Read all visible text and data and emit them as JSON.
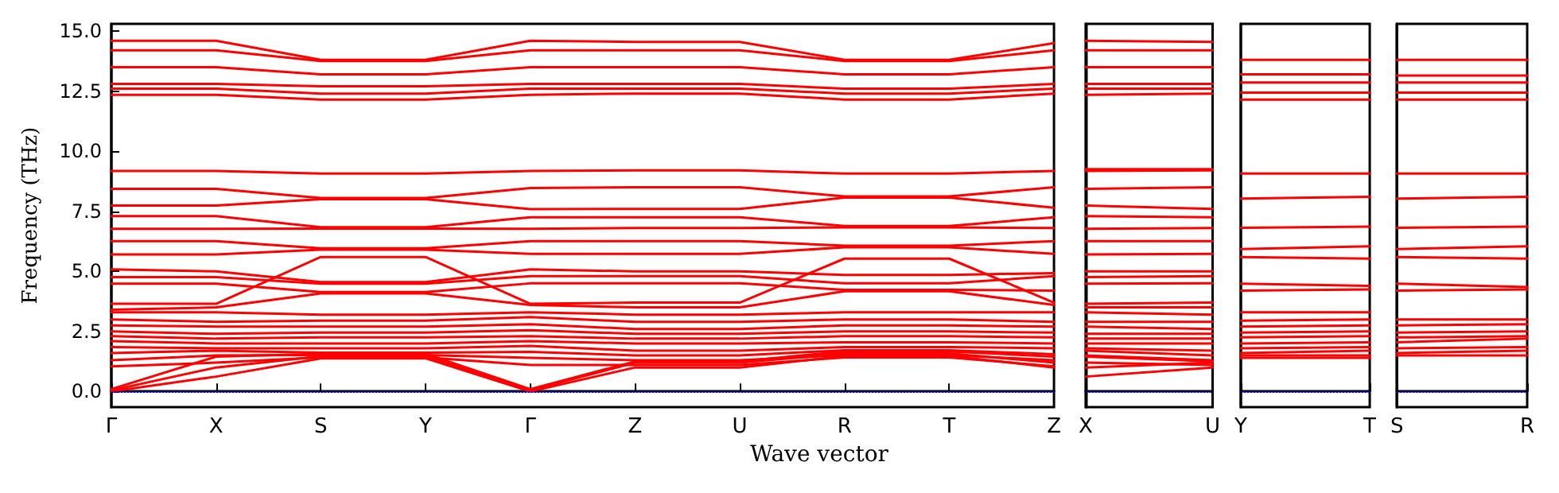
{
  "chart_data": [
    {
      "type": "line",
      "xlabel": "Wave vector",
      "ylabel": "Frequency (THz)",
      "ylim": [
        -0.65,
        15.3
      ],
      "categories": [
        "Γ",
        "X",
        "S",
        "Y",
        "Γ",
        "Z",
        "U",
        "R",
        "T",
        "Z"
      ],
      "yticks": [
        {
          "value": 0,
          "label": "0.0"
        },
        {
          "value": 2.5,
          "label": "2.5"
        },
        {
          "value": 5,
          "label": "5.0"
        },
        {
          "value": 7.5,
          "label": "7.5"
        },
        {
          "value": 10,
          "label": "10.0"
        },
        {
          "value": 12.5,
          "label": "12.5"
        },
        {
          "value": 15,
          "label": "15.0"
        }
      ],
      "grid": false,
      "marker": "none",
      "line_style": "solid",
      "ref_lines": [
        {
          "axis": "y",
          "value": 0,
          "color": "#0000ff",
          "line_style": "dotted"
        }
      ],
      "series": [
        {
          "color": "#ff0000",
          "values": [
            14.6,
            14.6,
            13.8,
            13.8,
            14.6,
            14.55,
            14.55,
            13.8,
            13.8,
            14.5
          ]
        },
        {
          "color": "#ff0000",
          "values": [
            14.2,
            14.2,
            13.75,
            13.75,
            14.2,
            14.2,
            14.2,
            13.75,
            13.75,
            14.2
          ]
        },
        {
          "color": "#ff0000",
          "values": [
            13.5,
            13.5,
            13.2,
            13.2,
            13.5,
            13.5,
            13.5,
            13.2,
            13.2,
            13.5
          ]
        },
        {
          "color": "#ff0000",
          "values": [
            12.8,
            12.8,
            12.7,
            12.7,
            12.8,
            12.8,
            12.8,
            12.6,
            12.6,
            12.8
          ]
        },
        {
          "color": "#ff0000",
          "values": [
            12.6,
            12.6,
            12.4,
            12.4,
            12.6,
            12.6,
            12.6,
            12.4,
            12.4,
            12.6
          ]
        },
        {
          "color": "#ff0000",
          "values": [
            12.35,
            12.35,
            12.15,
            12.15,
            12.35,
            12.4,
            12.4,
            12.15,
            12.15,
            12.4
          ]
        },
        {
          "color": "#ff0000",
          "values": [
            9.18,
            9.18,
            9.07,
            9.07,
            9.18,
            9.2,
            9.2,
            9.07,
            9.07,
            9.18
          ]
        },
        {
          "color": "#ff0000",
          "values": [
            8.43,
            8.43,
            8.05,
            8.05,
            8.47,
            8.5,
            8.5,
            8.12,
            8.12,
            8.5
          ]
        },
        {
          "color": "#ff0000",
          "values": [
            7.74,
            7.74,
            8.0,
            8.0,
            7.59,
            7.6,
            7.6,
            8.07,
            8.07,
            7.65
          ]
        },
        {
          "color": "#ff0000",
          "values": [
            7.3,
            7.3,
            6.84,
            6.84,
            7.25,
            7.25,
            7.25,
            6.89,
            6.89,
            7.25
          ]
        },
        {
          "color": "#ff0000",
          "values": [
            6.77,
            6.77,
            6.78,
            6.78,
            6.77,
            6.8,
            6.8,
            6.83,
            6.83,
            6.8
          ]
        },
        {
          "color": "#ff0000",
          "values": [
            6.26,
            6.26,
            5.96,
            5.96,
            6.26,
            6.26,
            6.26,
            6.07,
            6.07,
            6.26
          ]
        },
        {
          "color": "#ff0000",
          "values": [
            5.7,
            5.7,
            5.9,
            5.9,
            5.73,
            5.73,
            5.73,
            6.0,
            6.0,
            5.73
          ]
        },
        {
          "color": "#ff0000",
          "values": [
            3.65,
            3.65,
            5.6,
            5.6,
            3.65,
            3.7,
            3.7,
            5.53,
            5.53,
            3.7
          ]
        },
        {
          "color": "#ff0000",
          "values": [
            5.08,
            5.0,
            4.55,
            4.55,
            5.08,
            5.0,
            5.0,
            4.85,
            4.85,
            4.93
          ]
        },
        {
          "color": "#ff0000",
          "values": [
            4.76,
            4.76,
            4.49,
            4.49,
            4.8,
            4.8,
            4.8,
            4.5,
            4.5,
            4.8
          ]
        },
        {
          "color": "#ff0000",
          "values": [
            4.49,
            4.49,
            4.14,
            4.14,
            4.5,
            4.5,
            4.5,
            4.23,
            4.23,
            4.2
          ]
        },
        {
          "color": "#ff0000",
          "values": [
            3.4,
            3.5,
            4.08,
            4.08,
            3.6,
            3.5,
            3.5,
            4.17,
            4.17,
            3.6
          ]
        },
        {
          "color": "#ff0000",
          "values": [
            3.3,
            3.3,
            3.2,
            3.2,
            3.3,
            3.2,
            3.2,
            3.3,
            3.3,
            3.3
          ]
        },
        {
          "color": "#ff0000",
          "values": [
            3.0,
            2.9,
            2.95,
            2.95,
            3.1,
            2.9,
            2.9,
            3.0,
            3.0,
            2.9
          ]
        },
        {
          "color": "#ff0000",
          "values": [
            2.75,
            2.7,
            2.7,
            2.7,
            2.8,
            2.6,
            2.6,
            2.75,
            2.75,
            2.7
          ]
        },
        {
          "color": "#ff0000",
          "values": [
            2.5,
            2.4,
            2.45,
            2.45,
            2.55,
            2.4,
            2.4,
            2.5,
            2.5,
            2.45
          ]
        },
        {
          "color": "#ff0000",
          "values": [
            2.3,
            2.2,
            2.25,
            2.25,
            2.3,
            2.2,
            2.2,
            2.3,
            2.3,
            2.25
          ]
        },
        {
          "color": "#ff0000",
          "values": [
            2.1,
            2.0,
            2.0,
            2.0,
            2.1,
            2.0,
            2.0,
            2.05,
            2.05,
            2.0
          ]
        },
        {
          "color": "#ff0000",
          "values": [
            1.85,
            1.8,
            1.8,
            1.8,
            1.9,
            1.7,
            1.7,
            1.85,
            1.85,
            1.8
          ]
        },
        {
          "color": "#ff0000",
          "values": [
            1.6,
            1.7,
            1.62,
            1.62,
            1.65,
            1.5,
            1.5,
            1.72,
            1.72,
            1.55
          ]
        },
        {
          "color": "#ff0000",
          "values": [
            1.3,
            1.5,
            1.52,
            1.52,
            1.4,
            1.3,
            1.3,
            1.52,
            1.52,
            1.3
          ]
        },
        {
          "color": "#ff0000",
          "values": [
            1.05,
            1.2,
            1.42,
            1.42,
            1.1,
            1.1,
            1.1,
            1.42,
            1.42,
            1.05
          ]
        },
        {
          "color": "#ff0000",
          "values": [
            0,
            0.62,
            1.38,
            1.38,
            0,
            1.0,
            1.0,
            1.48,
            1.48,
            1.0
          ]
        },
        {
          "color": "#ff0000",
          "values": [
            0.05,
            1.0,
            1.47,
            1.47,
            0.05,
            1.2,
            1.2,
            1.58,
            1.58,
            1.2
          ]
        },
        {
          "color": "#ff0000",
          "values": [
            0.1,
            1.45,
            1.57,
            1.57,
            0.1,
            1.25,
            1.25,
            1.67,
            1.67,
            1.45
          ]
        }
      ]
    },
    {
      "type": "line",
      "ylim": [
        -0.65,
        15.3
      ],
      "tick_labels": "x",
      "categories": [
        "X",
        "U"
      ],
      "marker": "none",
      "line_style": "solid",
      "ref_lines": [
        {
          "axis": "y",
          "value": 0,
          "color": "#0000ff",
          "line_style": "dotted"
        }
      ],
      "series": [
        {
          "color": "#ff0000",
          "values": [
            14.6,
            14.55
          ]
        },
        {
          "color": "#ff0000",
          "values": [
            14.2,
            14.2
          ]
        },
        {
          "color": "#ff0000",
          "values": [
            13.5,
            13.5
          ]
        },
        {
          "color": "#ff0000",
          "values": [
            12.8,
            12.8
          ]
        },
        {
          "color": "#ff0000",
          "values": [
            12.6,
            12.6
          ]
        },
        {
          "color": "#ff0000",
          "values": [
            12.35,
            12.4
          ]
        },
        {
          "color": "#ff0000",
          "values": [
            9.18,
            9.2
          ]
        },
        {
          "color": "#ff0000",
          "values": [
            9.25,
            9.25
          ]
        },
        {
          "color": "#ff0000",
          "values": [
            8.43,
            8.5
          ]
        },
        {
          "color": "#ff0000",
          "values": [
            7.74,
            7.6
          ]
        },
        {
          "color": "#ff0000",
          "values": [
            7.3,
            7.25
          ]
        },
        {
          "color": "#ff0000",
          "values": [
            6.77,
            6.8
          ]
        },
        {
          "color": "#ff0000",
          "values": [
            6.26,
            6.26
          ]
        },
        {
          "color": "#ff0000",
          "values": [
            5.7,
            5.73
          ]
        },
        {
          "color": "#ff0000",
          "values": [
            3.65,
            3.7
          ]
        },
        {
          "color": "#ff0000",
          "values": [
            5.0,
            5.0
          ]
        },
        {
          "color": "#ff0000",
          "values": [
            4.76,
            4.8
          ]
        },
        {
          "color": "#ff0000",
          "values": [
            4.49,
            4.5
          ]
        },
        {
          "color": "#ff0000",
          "values": [
            3.5,
            3.5
          ]
        },
        {
          "color": "#ff0000",
          "values": [
            3.3,
            3.2
          ]
        },
        {
          "color": "#ff0000",
          "values": [
            2.9,
            2.9
          ]
        },
        {
          "color": "#ff0000",
          "values": [
            2.7,
            2.6
          ]
        },
        {
          "color": "#ff0000",
          "values": [
            2.4,
            2.4
          ]
        },
        {
          "color": "#ff0000",
          "values": [
            2.2,
            2.2
          ]
        },
        {
          "color": "#ff0000",
          "values": [
            2.0,
            2.0
          ]
        },
        {
          "color": "#ff0000",
          "values": [
            1.8,
            1.7
          ]
        },
        {
          "color": "#ff0000",
          "values": [
            1.7,
            1.5
          ]
        },
        {
          "color": "#ff0000",
          "values": [
            1.5,
            1.3
          ]
        },
        {
          "color": "#ff0000",
          "values": [
            1.2,
            1.1
          ]
        },
        {
          "color": "#ff0000",
          "values": [
            0.62,
            1.0
          ]
        },
        {
          "color": "#ff0000",
          "values": [
            1.0,
            1.2
          ]
        },
        {
          "color": "#ff0000",
          "values": [
            1.45,
            1.25
          ]
        }
      ]
    },
    {
      "type": "line",
      "ylim": [
        -0.65,
        15.3
      ],
      "tick_labels": "x",
      "categories": [
        "Y",
        "T"
      ],
      "marker": "none",
      "line_style": "solid",
      "ref_lines": [
        {
          "axis": "y",
          "value": 0,
          "color": "#0000ff",
          "line_style": "dotted"
        }
      ],
      "series": [
        {
          "color": "#ff0000",
          "values": [
            13.8,
            13.8
          ]
        },
        {
          "color": "#ff0000",
          "values": [
            13.2,
            13.2
          ]
        },
        {
          "color": "#ff0000",
          "values": [
            12.86,
            12.86
          ]
        },
        {
          "color": "#ff0000",
          "values": [
            12.44,
            12.44
          ]
        },
        {
          "color": "#ff0000",
          "values": [
            12.15,
            12.15
          ]
        },
        {
          "color": "#ff0000",
          "values": [
            9.07,
            9.07
          ]
        },
        {
          "color": "#ff0000",
          "values": [
            8.03,
            8.1
          ]
        },
        {
          "color": "#ff0000",
          "values": [
            6.81,
            6.86
          ]
        },
        {
          "color": "#ff0000",
          "values": [
            5.93,
            6.04
          ]
        },
        {
          "color": "#ff0000",
          "values": [
            5.6,
            5.53
          ]
        },
        {
          "color": "#ff0000",
          "values": [
            4.49,
            4.4
          ]
        },
        {
          "color": "#ff0000",
          "values": [
            4.2,
            4.25
          ]
        },
        {
          "color": "#ff0000",
          "values": [
            3.3,
            3.3
          ]
        },
        {
          "color": "#ff0000",
          "values": [
            2.95,
            3.0
          ]
        },
        {
          "color": "#ff0000",
          "values": [
            2.7,
            2.75
          ]
        },
        {
          "color": "#ff0000",
          "values": [
            2.45,
            2.5
          ]
        },
        {
          "color": "#ff0000",
          "values": [
            2.25,
            2.3
          ]
        },
        {
          "color": "#ff0000",
          "values": [
            2.0,
            2.05
          ]
        },
        {
          "color": "#ff0000",
          "values": [
            1.8,
            1.85
          ]
        },
        {
          "color": "#ff0000",
          "values": [
            1.6,
            1.7
          ]
        },
        {
          "color": "#ff0000",
          "values": [
            1.5,
            1.5
          ]
        },
        {
          "color": "#ff0000",
          "values": [
            1.4,
            1.4
          ]
        }
      ]
    },
    {
      "type": "line",
      "ylim": [
        -0.65,
        15.3
      ],
      "tick_labels": "x",
      "categories": [
        "S",
        "R"
      ],
      "marker": "none",
      "line_style": "solid",
      "ref_lines": [
        {
          "axis": "y",
          "value": 0,
          "color": "#0000ff",
          "line_style": "dotted"
        }
      ],
      "series": [
        {
          "color": "#ff0000",
          "values": [
            13.8,
            13.8
          ]
        },
        {
          "color": "#ff0000",
          "values": [
            13.15,
            13.15
          ]
        },
        {
          "color": "#ff0000",
          "values": [
            12.86,
            12.86
          ]
        },
        {
          "color": "#ff0000",
          "values": [
            12.44,
            12.44
          ]
        },
        {
          "color": "#ff0000",
          "values": [
            12.15,
            12.15
          ]
        },
        {
          "color": "#ff0000",
          "values": [
            9.07,
            9.07
          ]
        },
        {
          "color": "#ff0000",
          "values": [
            8.03,
            8.1
          ]
        },
        {
          "color": "#ff0000",
          "values": [
            6.81,
            6.86
          ]
        },
        {
          "color": "#ff0000",
          "values": [
            5.93,
            6.04
          ]
        },
        {
          "color": "#ff0000",
          "values": [
            5.6,
            5.53
          ]
        },
        {
          "color": "#ff0000",
          "values": [
            4.49,
            4.35
          ]
        },
        {
          "color": "#ff0000",
          "values": [
            4.2,
            4.25
          ]
        },
        {
          "color": "#ff0000",
          "values": [
            3.0,
            3.0
          ]
        },
        {
          "color": "#ff0000",
          "values": [
            2.75,
            2.8
          ]
        },
        {
          "color": "#ff0000",
          "values": [
            2.45,
            2.5
          ]
        },
        {
          "color": "#ff0000",
          "values": [
            2.25,
            2.3
          ]
        },
        {
          "color": "#ff0000",
          "values": [
            2.05,
            2.2
          ]
        },
        {
          "color": "#ff0000",
          "values": [
            1.8,
            1.85
          ]
        },
        {
          "color": "#ff0000",
          "values": [
            1.6,
            1.7
          ]
        },
        {
          "color": "#ff0000",
          "values": [
            1.5,
            1.5
          ]
        }
      ]
    }
  ]
}
